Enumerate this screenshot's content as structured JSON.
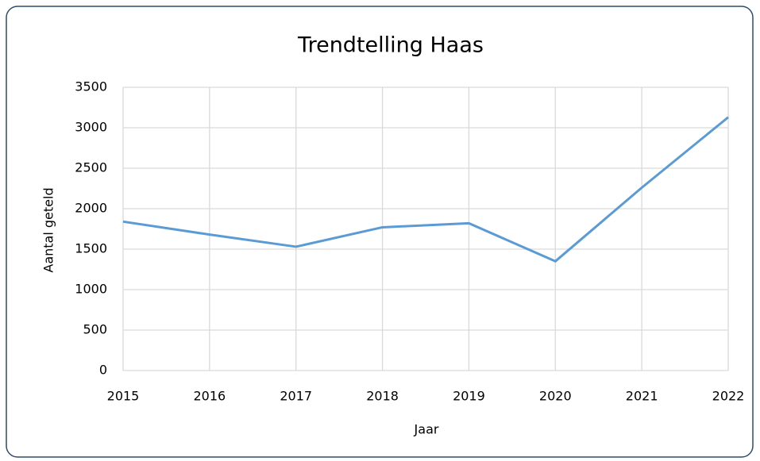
{
  "chart_data": {
    "type": "line",
    "title": "Trendtelling Haas",
    "x_label": "Jaar",
    "y_label": "Aantal geteld",
    "x": [
      2015,
      2016,
      2017,
      2018,
      2019,
      2020,
      2021,
      2022
    ],
    "values": [
      1840,
      1680,
      1530,
      1770,
      1820,
      1350,
      2260,
      3130
    ],
    "color": "#5b9bd5",
    "xlim": [
      2015,
      2022
    ],
    "xticks": [
      2015,
      2016,
      2017,
      2018,
      2019,
      2020,
      2021,
      2022
    ],
    "ylim": [
      0,
      3500
    ],
    "yticks": [
      0,
      500,
      1000,
      1500,
      2000,
      2500,
      3000,
      3500
    ],
    "grid": true
  }
}
